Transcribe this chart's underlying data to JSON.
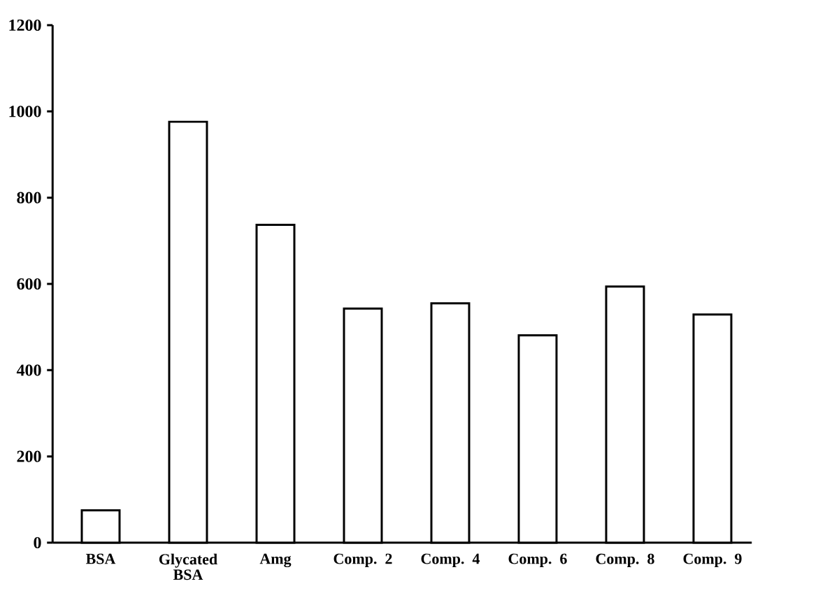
{
  "chart_data": {
    "type": "bar",
    "categories": [
      "BSA",
      "Glycated BSA",
      "Amg",
      "Comp. 2",
      "Comp. 4",
      "Comp. 6",
      "Comp. 8",
      "Comp. 9"
    ],
    "values": [
      75,
      976,
      737,
      543,
      555,
      481,
      594,
      529
    ],
    "color": "#ffffff",
    "ylim": [
      0,
      1200
    ],
    "yticks": [
      0,
      200,
      400,
      600,
      800,
      1000,
      1200
    ]
  }
}
